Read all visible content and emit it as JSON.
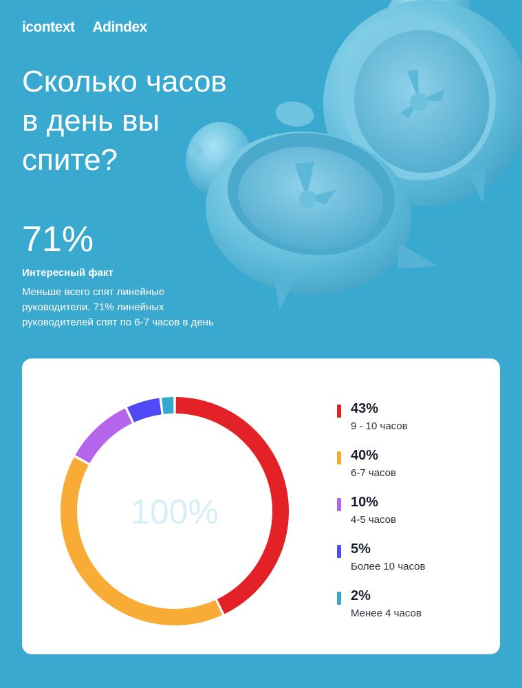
{
  "brand": {
    "logo1": "icontext",
    "logo2": "Adindex"
  },
  "title_lines": [
    "Сколько часов",
    "в день вы",
    "спите?"
  ],
  "highlight": {
    "value": "71%",
    "heading": "Интересный факт",
    "text_lines": [
      "Меньше всего спят линейные",
      "руководители. 71% линейных",
      "руководителей спят по 6-7 часов в день"
    ]
  },
  "chart_data": {
    "type": "pie",
    "center_label": "100%",
    "slices": [
      {
        "label": "9 - 10 часов",
        "value": 43,
        "display": "43%",
        "color": "#e32228"
      },
      {
        "label": "6-7 часов",
        "value": 40,
        "display": "40%",
        "color": "#f9ac35"
      },
      {
        "label": "4-5 часов",
        "value": 10,
        "display": "10%",
        "color": "#b565eb"
      },
      {
        "label": "Более 10 часов",
        "value": 5,
        "display": "5%",
        "color": "#5149f6"
      },
      {
        "label": "Менее 4 часов",
        "value": 2,
        "display": "2%",
        "color": "#38a9ce"
      }
    ]
  }
}
